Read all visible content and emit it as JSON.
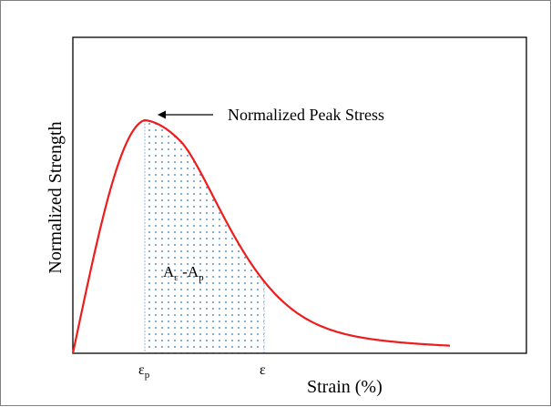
{
  "chart": {
    "ylabel": "Normalized Strength",
    "xlabel": "Strain (%)",
    "annotation": "Normalized Peak Stress",
    "eps_p_main": "ε",
    "eps_p_sub": "p",
    "eps": "ε",
    "area_A1": "A",
    "area_A1_sub": "ε",
    "area_sep": " -A",
    "area_A2_sub": "p"
  },
  "colors": {
    "curve": "#ee1c1c",
    "markers": "#9dc3e6",
    "dots": "#2e75b6",
    "axes": "#000000"
  }
}
